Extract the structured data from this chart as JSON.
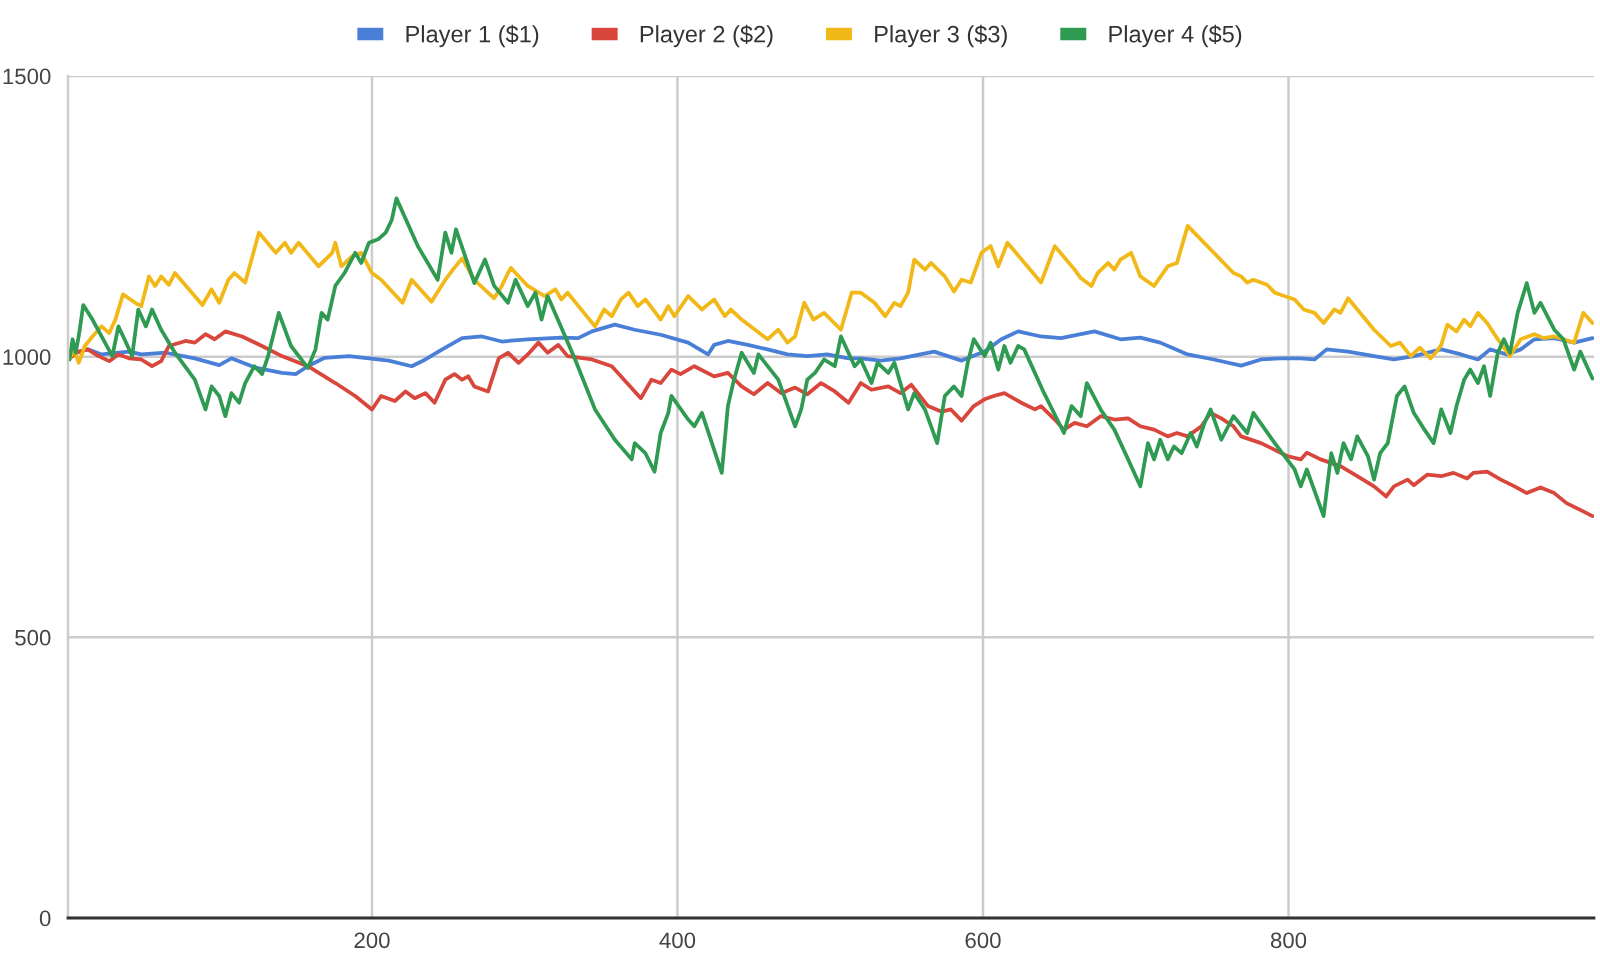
{
  "chart_data": {
    "type": "line",
    "xlim": [
      1,
      1000
    ],
    "xticks": [
      200,
      400,
      600,
      800
    ],
    "ylim": [
      0,
      1500
    ],
    "yticks": [
      0,
      500,
      1000,
      1500
    ],
    "grid": true,
    "legend": "top",
    "series": [
      {
        "name": "Player 1 ($1)",
        "color": "#4a7fd8",
        "x": [
          2,
          14,
          23,
          41,
          49,
          65,
          84,
          100,
          108,
          123,
          141,
          150,
          158,
          169,
          185,
          198,
          211,
          226,
          235,
          246,
          259,
          272,
          285,
          302,
          324,
          335,
          344,
          359,
          372,
          389,
          407,
          420,
          424,
          433,
          446,
          459,
          472,
          485,
          498,
          512,
          520,
          533,
          546,
          568,
          586,
          601,
          612,
          623,
          638,
          651,
          673,
          690,
          703,
          716,
          734,
          751,
          769,
          782,
          795,
          808,
          817,
          825,
          839,
          856,
          869,
          882,
          900,
          913,
          924,
          932,
          943,
          952,
          961,
          974,
          987,
          999
        ],
        "values": [
          1004,
          1013,
          1004,
          1009,
          1004,
          1007,
          997,
          985,
          997,
          981,
          971,
          969,
          983,
          998,
          1001,
          997,
          993,
          983,
          995,
          1013,
          1033,
          1036,
          1027,
          1031,
          1034,
          1033,
          1045,
          1057,
          1048,
          1039,
          1025,
          1004,
          1021,
          1028,
          1021,
          1013,
          1004,
          1001,
          1004,
          997,
          997,
          993,
          997,
          1009,
          993,
          1009,
          1031,
          1045,
          1036,
          1033,
          1045,
          1031,
          1034,
          1025,
          1004,
          995,
          984,
          995,
          997,
          997,
          995,
          1013,
          1009,
          1001,
          995,
          1001,
          1013,
          1004,
          995,
          1013,
          1004,
          1013,
          1031,
          1033,
          1025,
          1033
        ]
      },
      {
        "name": "Player 2 ($2)",
        "color": "#d9463b",
        "x": [
          2,
          8,
          14,
          21,
          28,
          34,
          41,
          49,
          56,
          62,
          67,
          78,
          84,
          91,
          97,
          104,
          115,
          128,
          141,
          158,
          176,
          189,
          200,
          206,
          215,
          222,
          228,
          235,
          241,
          248,
          254,
          259,
          263,
          267,
          276,
          283,
          289,
          296,
          302,
          309,
          315,
          322,
          328,
          344,
          357,
          368,
          376,
          383,
          389,
          396,
          402,
          411,
          424,
          433,
          442,
          450,
          459,
          468,
          477,
          485,
          494,
          503,
          512,
          520,
          527,
          538,
          546,
          553,
          564,
          573,
          579,
          586,
          594,
          601,
          607,
          614,
          625,
          634,
          638,
          647,
          653,
          660,
          668,
          677,
          686,
          695,
          703,
          712,
          721,
          727,
          734,
          743,
          749,
          756,
          764,
          769,
          782,
          791,
          799,
          808,
          812,
          821,
          834,
          845,
          856,
          864,
          869,
          878,
          882,
          891,
          900,
          908,
          917,
          921,
          930,
          939,
          948,
          956,
          965,
          974,
          982,
          991,
          999
        ],
        "values": [
          997,
          1009,
          1013,
          1001,
          992,
          1004,
          997,
          995,
          983,
          992,
          1019,
          1028,
          1025,
          1040,
          1031,
          1045,
          1036,
          1019,
          1001,
          983,
          953,
          930,
          906,
          930,
          921,
          938,
          926,
          935,
          918,
          959,
          969,
          959,
          965,
          947,
          938,
          997,
          1007,
          989,
          1004,
          1025,
          1007,
          1021,
          1001,
          995,
          983,
          950,
          926,
          959,
          953,
          977,
          969,
          983,
          965,
          971,
          947,
          933,
          953,
          935,
          945,
          933,
          953,
          938,
          918,
          953,
          941,
          947,
          935,
          950,
          912,
          902,
          906,
          886,
          912,
          924,
          930,
          935,
          918,
          906,
          912,
          888,
          870,
          882,
          876,
          894,
          888,
          890,
          876,
          870,
          858,
          864,
          858,
          876,
          900,
          890,
          876,
          858,
          846,
          834,
          823,
          817,
          829,
          817,
          805,
          787,
          769,
          751,
          769,
          781,
          771,
          790,
          787,
          793,
          783,
          793,
          795,
          781,
          769,
          757,
          767,
          757,
          739,
          727,
          716
        ]
      },
      {
        "name": "Player 3 ($3)",
        "color": "#f2b818",
        "x": [
          2,
          5,
          8,
          12,
          17,
          23,
          28,
          32,
          37,
          45,
          49,
          54,
          58,
          62,
          67,
          71,
          89,
          95,
          100,
          106,
          110,
          117,
          126,
          137,
          143,
          147,
          152,
          165,
          174,
          176,
          180,
          187,
          193,
          200,
          206,
          220,
          226,
          239,
          248,
          253,
          259,
          267,
          280,
          285,
          289,
          291,
          302,
          313,
          320,
          324,
          328,
          346,
          352,
          357,
          363,
          368,
          374,
          379,
          389,
          394,
          398,
          407,
          416,
          424,
          431,
          435,
          442,
          459,
          466,
          472,
          477,
          483,
          489,
          496,
          507,
          514,
          520,
          529,
          536,
          542,
          546,
          551,
          555,
          562,
          566,
          575,
          581,
          586,
          592,
          599,
          605,
          610,
          616,
          638,
          647,
          660,
          664,
          671,
          675,
          682,
          686,
          690,
          697,
          703,
          712,
          721,
          727,
          734,
          764,
          769,
          773,
          777,
          786,
          791,
          804,
          810,
          817,
          823,
          830,
          834,
          839,
          856,
          867,
          873,
          880,
          886,
          893,
          897,
          900,
          904,
          910,
          915,
          919,
          924,
          930,
          937,
          945,
          952,
          961,
          967,
          974,
          980,
          987,
          993,
          999
        ],
        "values": [
          995,
          1013,
          989,
          1019,
          1036,
          1054,
          1042,
          1066,
          1111,
          1096,
          1090,
          1143,
          1126,
          1143,
          1128,
          1149,
          1092,
          1120,
          1096,
          1137,
          1149,
          1132,
          1221,
          1185,
          1203,
          1185,
          1203,
          1161,
          1185,
          1203,
          1161,
          1179,
          1185,
          1149,
          1137,
          1096,
          1137,
          1098,
          1137,
          1155,
          1175,
          1137,
          1104,
          1126,
          1149,
          1158,
          1126,
          1108,
          1120,
          1102,
          1114,
          1054,
          1084,
          1072,
          1102,
          1114,
          1090,
          1102,
          1066,
          1090,
          1072,
          1108,
          1084,
          1102,
          1072,
          1084,
          1066,
          1031,
          1048,
          1025,
          1036,
          1096,
          1066,
          1078,
          1048,
          1114,
          1114,
          1096,
          1072,
          1096,
          1090,
          1114,
          1173,
          1155,
          1167,
          1143,
          1116,
          1137,
          1132,
          1185,
          1197,
          1161,
          1203,
          1132,
          1197,
          1155,
          1140,
          1126,
          1149,
          1167,
          1155,
          1173,
          1185,
          1143,
          1126,
          1161,
          1167,
          1233,
          1149,
          1143,
          1132,
          1137,
          1128,
          1114,
          1102,
          1084,
          1078,
          1060,
          1084,
          1078,
          1104,
          1048,
          1019,
          1025,
          1001,
          1016,
          997,
          1009,
          1021,
          1057,
          1045,
          1066,
          1054,
          1078,
          1060,
          1031,
          1001,
          1031,
          1040,
          1033,
          1036,
          1031,
          1025,
          1078,
          1060
        ]
      },
      {
        "name": "Player 4 ($5)",
        "color": "#2e9a52",
        "x": [
          2,
          4,
          6,
          8,
          11,
          17,
          23,
          30,
          34,
          38,
          43,
          47,
          52,
          56,
          62,
          71,
          84,
          91,
          95,
          100,
          104,
          108,
          113,
          117,
          123,
          128,
          132,
          139,
          147,
          158,
          163,
          167,
          171,
          176,
          182,
          189,
          193,
          198,
          204,
          209,
          213,
          216,
          230,
          243,
          248,
          252,
          255,
          267,
          274,
          280,
          289,
          294,
          302,
          307,
          311,
          315,
          333,
          346,
          359,
          370,
          372,
          379,
          385,
          389,
          394,
          396,
          407,
          411,
          416,
          429,
          433,
          437,
          442,
          450,
          453,
          466,
          477,
          481,
          485,
          490,
          496,
          503,
          507,
          516,
          520,
          527,
          531,
          538,
          542,
          551,
          555,
          562,
          570,
          575,
          581,
          586,
          590,
          594,
          601,
          605,
          610,
          614,
          618,
          623,
          627,
          640,
          653,
          658,
          664,
          668,
          677,
          686,
          695,
          703,
          708,
          712,
          716,
          721,
          725,
          730,
          736,
          740,
          745,
          749,
          756,
          764,
          773,
          777,
          791,
          804,
          808,
          812,
          823,
          828,
          832,
          836,
          841,
          845,
          852,
          856,
          860,
          865,
          871,
          876,
          882,
          889,
          895,
          900,
          906,
          910,
          915,
          919,
          924,
          928,
          932,
          937,
          941,
          945,
          950,
          956,
          961,
          965,
          974,
          980,
          987,
          991,
          999
        ],
        "values": [
          995,
          1031,
          1007,
          1036,
          1092,
          1066,
          1036,
          1001,
          1054,
          1031,
          1001,
          1084,
          1054,
          1084,
          1048,
          1007,
          959,
          906,
          947,
          930,
          894,
          935,
          918,
          953,
          983,
          969,
          1001,
          1078,
          1019,
          980,
          1013,
          1078,
          1066,
          1126,
          1149,
          1185,
          1167,
          1203,
          1209,
          1221,
          1244,
          1282,
          1197,
          1137,
          1221,
          1185,
          1227,
          1131,
          1173,
          1126,
          1096,
          1137,
          1090,
          1114,
          1066,
          1108,
          995,
          906,
          852,
          817,
          846,
          828,
          795,
          864,
          900,
          930,
          888,
          876,
          900,
          793,
          912,
          959,
          1007,
          971,
          1004,
          959,
          876,
          906,
          959,
          971,
          995,
          983,
          1036,
          983,
          995,
          953,
          989,
          971,
          989,
          906,
          935,
          906,
          846,
          930,
          947,
          930,
          989,
          1031,
          1001,
          1025,
          977,
          1019,
          989,
          1019,
          1013,
          935,
          864,
          912,
          894,
          953,
          906,
          870,
          817,
          769,
          846,
          817,
          852,
          817,
          840,
          828,
          864,
          840,
          882,
          906,
          852,
          894,
          864,
          900,
          846,
          799,
          769,
          799,
          716,
          828,
          793,
          846,
          817,
          858,
          823,
          781,
          828,
          846,
          930,
          947,
          900,
          870,
          846,
          906,
          864,
          912,
          959,
          977,
          953,
          983,
          930,
          1007,
          1031,
          1007,
          1078,
          1131,
          1078,
          1096,
          1048,
          1031,
          977,
          1009,
          961
        ]
      }
    ]
  }
}
